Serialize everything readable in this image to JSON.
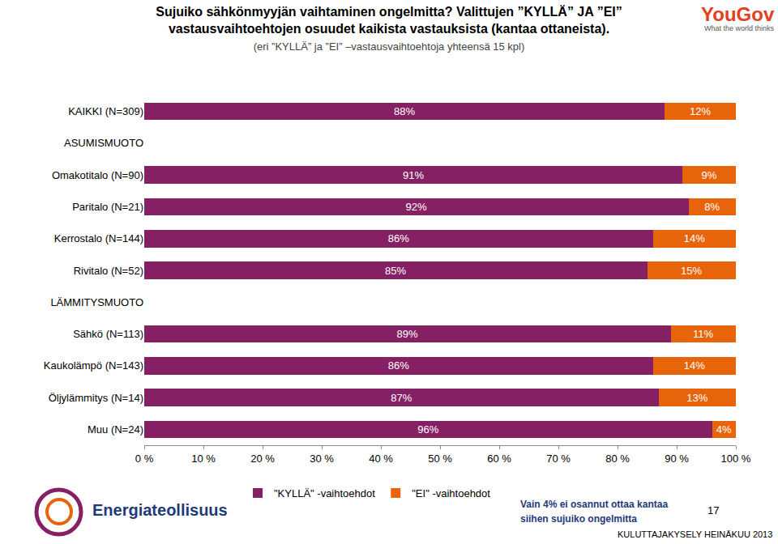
{
  "chart_data": {
    "type": "bar",
    "orientation": "horizontal",
    "stacked": true,
    "data_labels": true,
    "grid": false,
    "legend": "bottom",
    "title": "Sujuiko sähkönmyyjän vaihtaminen ongelmitta? Valittujen ”KYLLÄ” JA ”EI” vastausvaihtoehtojen osuudet kaikista vastauksista (kantaa ottaneista).",
    "subtitle": "(eri ”KYLLÄ” ja ”EI” –vastausvaihtoehtoja yhteensä 15 kpl)",
    "categories": [
      "KAIKKI (N=309)",
      "ASUMISMUOTO",
      "Omakotitalo (N=90)",
      "Paritalo (N=21)",
      "Kerrostalo (N=144)",
      "Rivitalo (N=52)",
      "LÄMMITYSMUOTO",
      "Sähkö (N=113)",
      "Kaukolämpö (N=143)",
      "Öljylämmitys (N=14)",
      "Muu (N=24)"
    ],
    "series": [
      {
        "name": "\"KYLLÄ\" -vaihtoehdot",
        "color": "#862064",
        "values": [
          88,
          null,
          91,
          92,
          86,
          85,
          null,
          89,
          86,
          87,
          96
        ],
        "value_labels": [
          "88%",
          null,
          "91%",
          "92%",
          "86%",
          "85%",
          null,
          "89%",
          "86%",
          "87%",
          "96%"
        ]
      },
      {
        "name": "\"EI\" -vaihtoehdot",
        "color": "#e8640a",
        "values": [
          12,
          null,
          9,
          8,
          14,
          15,
          null,
          11,
          14,
          13,
          4
        ],
        "value_labels": [
          "12%",
          null,
          "9%",
          "8%",
          "14%",
          "15%",
          null,
          "11%",
          "14%",
          "13%",
          "4%"
        ]
      }
    ],
    "xlim": [
      0,
      100
    ],
    "xticks": [
      {
        "value": 0,
        "label": "0 %"
      },
      {
        "value": 10,
        "label": "10 %"
      },
      {
        "value": 20,
        "label": "20 %"
      },
      {
        "value": 30,
        "label": "30 %"
      },
      {
        "value": 40,
        "label": "40 %"
      },
      {
        "value": 50,
        "label": "50 %"
      },
      {
        "value": 60,
        "label": "60 %"
      },
      {
        "value": 70,
        "label": "70 %"
      },
      {
        "value": 80,
        "label": "80 %"
      },
      {
        "value": 90,
        "label": "90 %"
      },
      {
        "value": 100,
        "label": "100 %"
      }
    ],
    "annotations": [
      "YouGov",
      "What the world thinks",
      "Energiateollisuus",
      "Vain 4% ei osannut ottaa kantaa",
      "siihen sujuiko ongelmitta",
      "17",
      "KULUTTAJAKYSELY HEINÄKUU 2013"
    ]
  }
}
